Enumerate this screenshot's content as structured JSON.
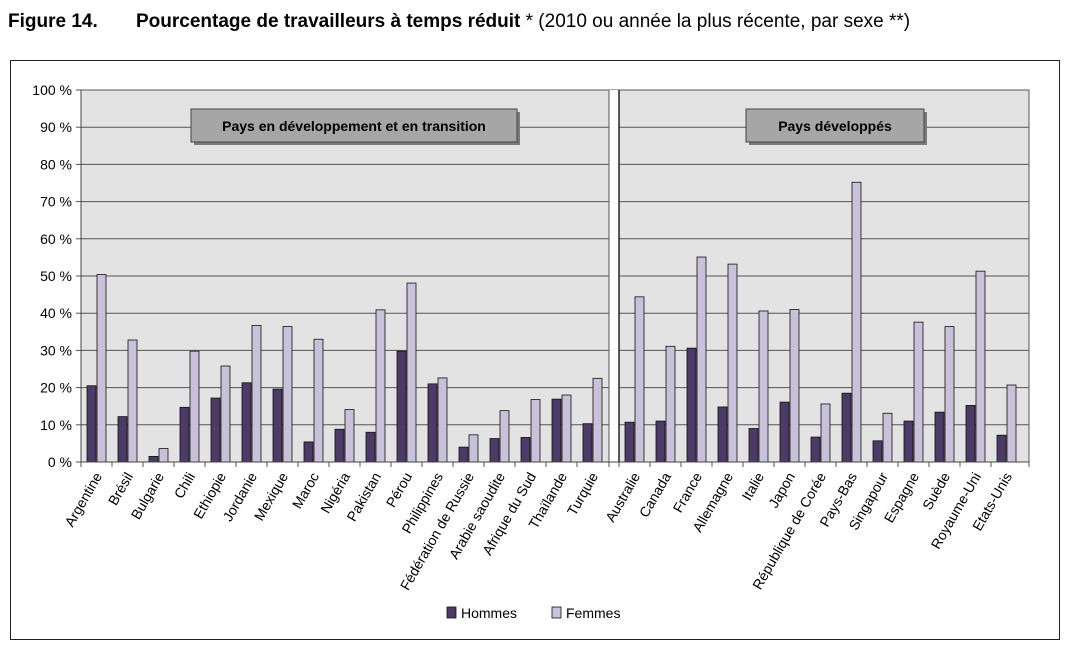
{
  "figure": {
    "number": "Figure 14.",
    "title": "Pourcentage de travailleurs à temps réduit",
    "subtitle": " * (2010 ou année la plus récente, par sexe **)"
  },
  "colors": {
    "hommes": "#4b3b66",
    "femmes": "#c9c0d9",
    "plot_bg": "#e3e3e3",
    "panel_label_bg": "#a6a6a6"
  },
  "chart_data": {
    "type": "bar",
    "ylim": [
      0,
      100
    ],
    "y_ticks": [
      "0 %",
      "10 %",
      "20 %",
      "30 %",
      "40 %",
      "50 %",
      "60 %",
      "70 %",
      "80 %",
      "90 %",
      "100 %"
    ],
    "grid": true,
    "legend_position": "bottom",
    "series": [
      {
        "name": "Hommes",
        "color": "#4b3b66"
      },
      {
        "name": "Femmes",
        "color": "#c9c0d9"
      }
    ],
    "panels": [
      {
        "label": "Pays en développement et en transition",
        "categories": [
          "Argentine",
          "Brésil",
          "Bulgarie",
          "Chili",
          "Ethiopie",
          "Jordanie",
          "Mexique",
          "Maroc",
          "Nigéria",
          "Pakistan",
          "Pérou",
          "Philippines",
          "Fédération de Russie",
          "Arabie saoudite",
          "Afrique du Sud",
          "Thaïlande",
          "Turquie"
        ],
        "hommes": [
          20.5,
          12.2,
          1.5,
          14.7,
          17.2,
          21.3,
          19.6,
          5.4,
          8.8,
          8.0,
          29.8,
          21.0,
          4.0,
          6.3,
          6.6,
          16.9,
          10.3
        ],
        "femmes": [
          50.4,
          32.8,
          3.6,
          29.8,
          25.8,
          36.7,
          36.4,
          33.0,
          14.1,
          40.9,
          48.1,
          22.6,
          7.3,
          13.8,
          16.8,
          18.0,
          22.5
        ]
      },
      {
        "label": "Pays développés",
        "categories": [
          "Australie",
          "Canada",
          "France",
          "Allemagne",
          "Italie",
          "Japon",
          "République de Corée",
          "Pays-Bas",
          "Singapour",
          "Espagne",
          "Suède",
          "Royaume-Uni",
          "Etats-Unis"
        ],
        "hommes": [
          10.7,
          11.0,
          30.6,
          14.8,
          9.0,
          16.1,
          6.7,
          18.5,
          5.7,
          11.0,
          13.4,
          15.2,
          7.2
        ],
        "femmes": [
          44.4,
          31.1,
          55.1,
          53.2,
          40.6,
          41.0,
          15.6,
          75.2,
          13.1,
          37.6,
          36.4,
          51.3,
          20.7
        ]
      }
    ]
  }
}
